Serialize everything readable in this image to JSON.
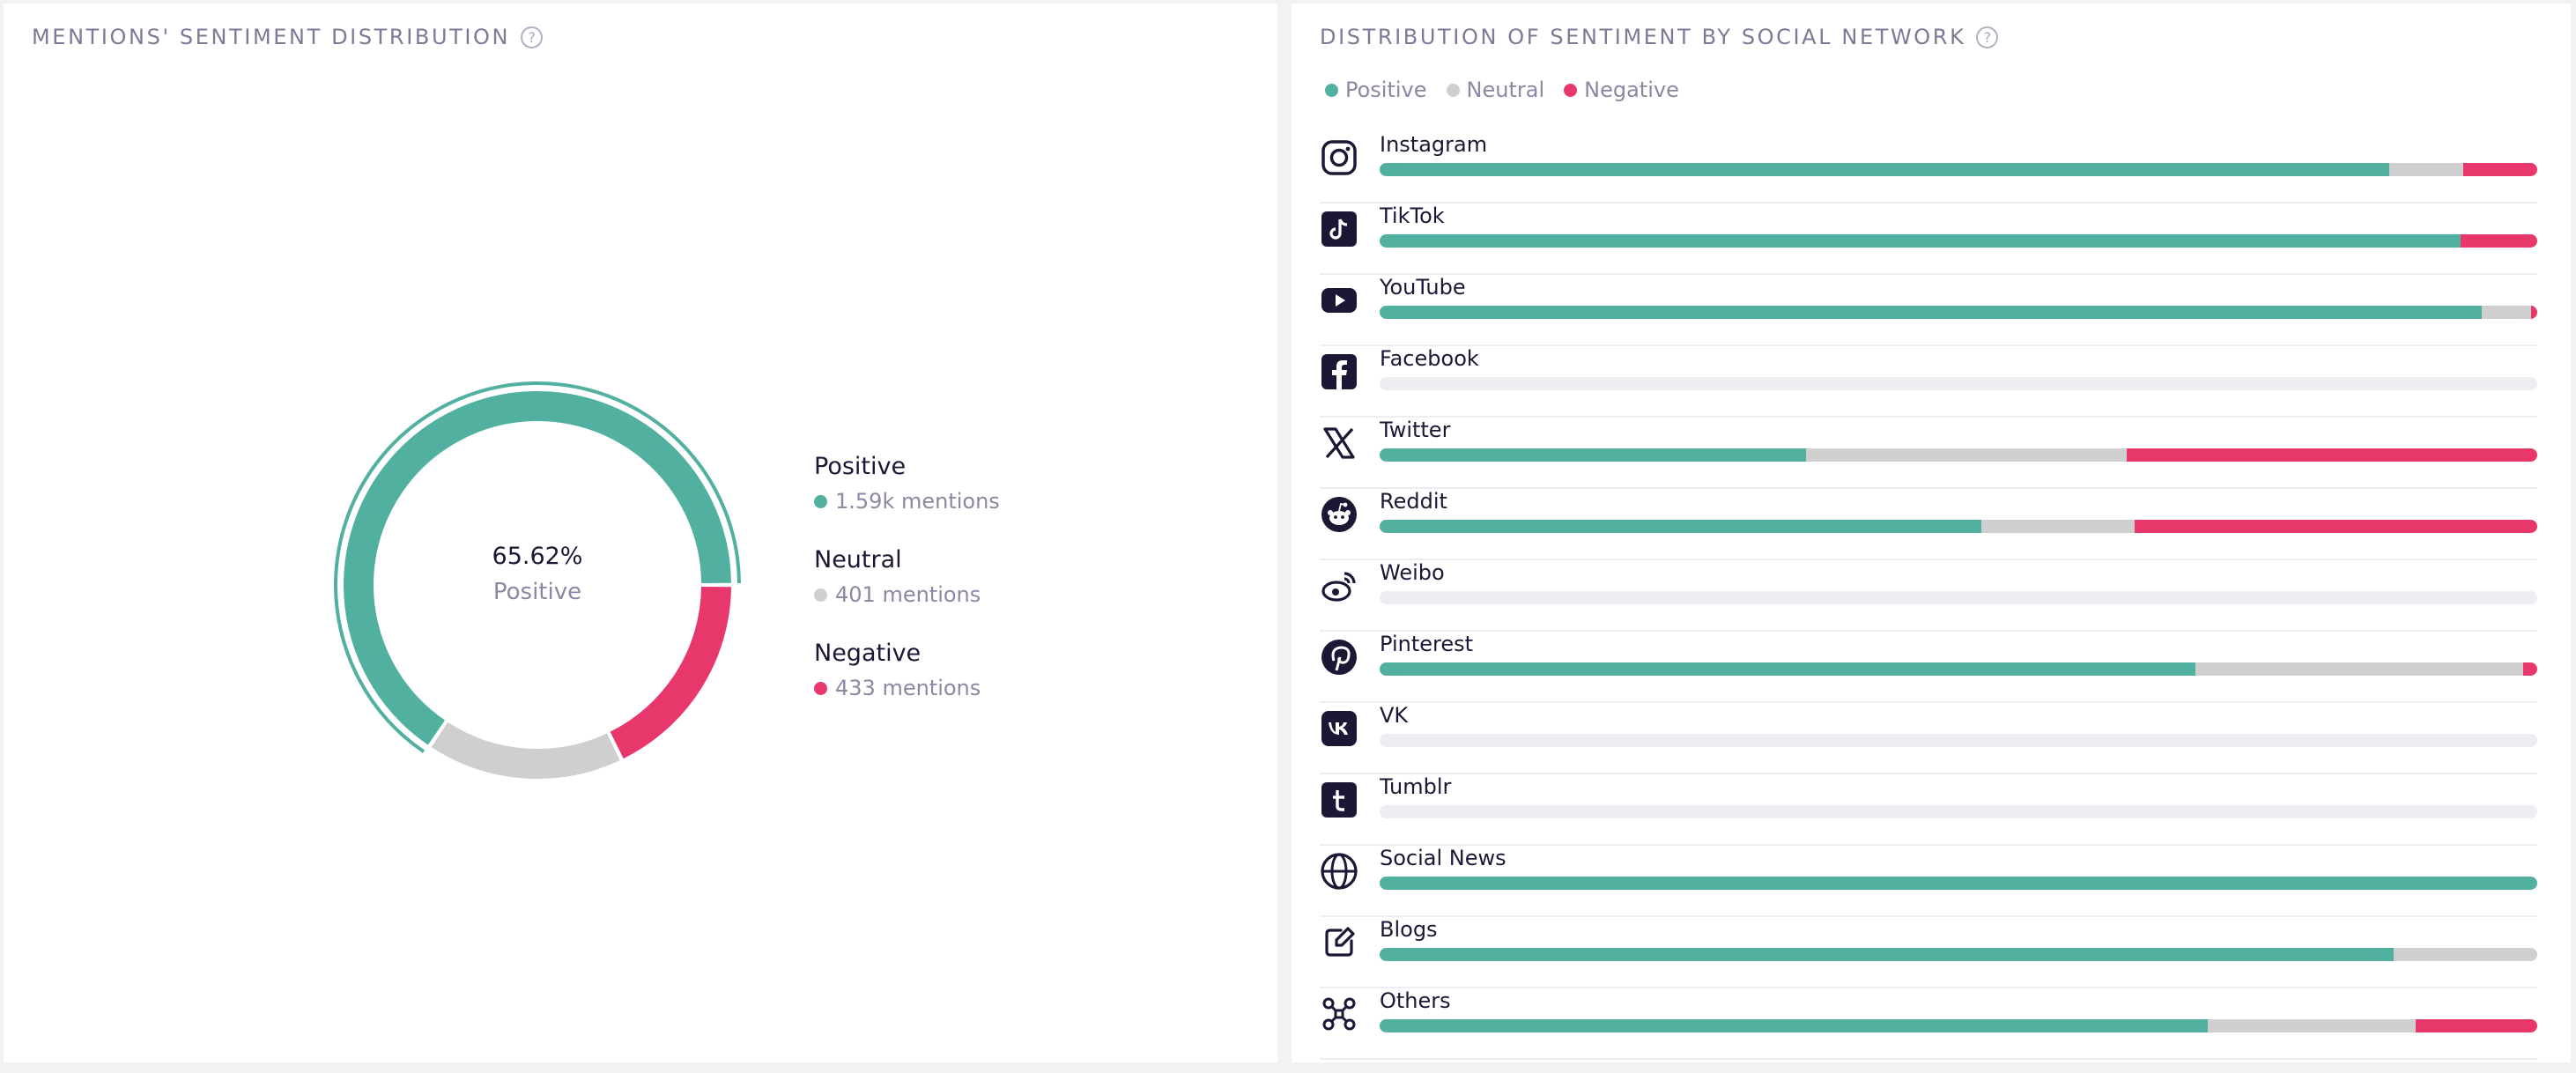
{
  "left_card": {
    "title": "Mentions' sentiment distribution",
    "help_icon": "?",
    "center_value": "65.62%",
    "center_label": "Positive",
    "legend": [
      {
        "name": "Positive",
        "count": "1.59k mentions",
        "color": "#52b0a1"
      },
      {
        "name": "Neutral",
        "count": "401 mentions",
        "color": "#cfcfcf"
      },
      {
        "name": "Negative",
        "count": "433 mentions",
        "color": "#e8386b"
      }
    ]
  },
  "right_card": {
    "title": "Distribution of sentiment by social network",
    "help_icon": "?",
    "legend": [
      {
        "name": "Positive",
        "color": "#52b0a1"
      },
      {
        "name": "Neutral",
        "color": "#cfcfcf"
      },
      {
        "name": "Negative",
        "color": "#e8386b"
      }
    ],
    "empty_bar_color": "#ededf2"
  },
  "chart_data": [
    {
      "type": "pie",
      "center_value": "65.62%",
      "center_label": "Positive",
      "categories": [
        "Positive",
        "Neutral",
        "Negative"
      ],
      "values": [
        65.62,
        16.54,
        17.84
      ],
      "counts": [
        "1.59k",
        "401",
        "433"
      ],
      "colors": [
        "#52b0a1",
        "#cfcfcf",
        "#e8386b"
      ],
      "highlighted": "Positive"
    },
    {
      "type": "bar",
      "orientation": "horizontal",
      "stacked": true,
      "normalized": true,
      "categories": [
        "Instagram",
        "TikTok",
        "YouTube",
        "Facebook",
        "Twitter",
        "Reddit",
        "Weibo",
        "Pinterest",
        "VK",
        "Tumblr",
        "Social News",
        "Blogs",
        "Others"
      ],
      "icons": [
        "instagram-icon",
        "tiktok-icon",
        "youtube-icon",
        "facebook-icon",
        "x-twitter-icon",
        "reddit-icon",
        "weibo-icon",
        "pinterest-icon",
        "vk-icon",
        "tumblr-icon",
        "globe-icon",
        "edit-icon",
        "network-icon"
      ],
      "series": [
        {
          "name": "Positive",
          "color": "#52b0a1",
          "values": [
            87.2,
            93.4,
            95.2,
            0,
            36.8,
            52.0,
            0,
            70.5,
            0,
            0,
            100,
            87.6,
            71.5
          ]
        },
        {
          "name": "Neutral",
          "color": "#cfcfcf",
          "values": [
            6.4,
            0,
            4.3,
            0,
            27.7,
            13.2,
            0,
            28.3,
            0,
            0,
            0,
            12.4,
            18.0
          ]
        },
        {
          "name": "Negative",
          "color": "#e8386b",
          "values": [
            6.4,
            6.6,
            0.5,
            0,
            35.5,
            34.8,
            0,
            1.2,
            0,
            0,
            0,
            0,
            10.5
          ]
        }
      ]
    }
  ]
}
